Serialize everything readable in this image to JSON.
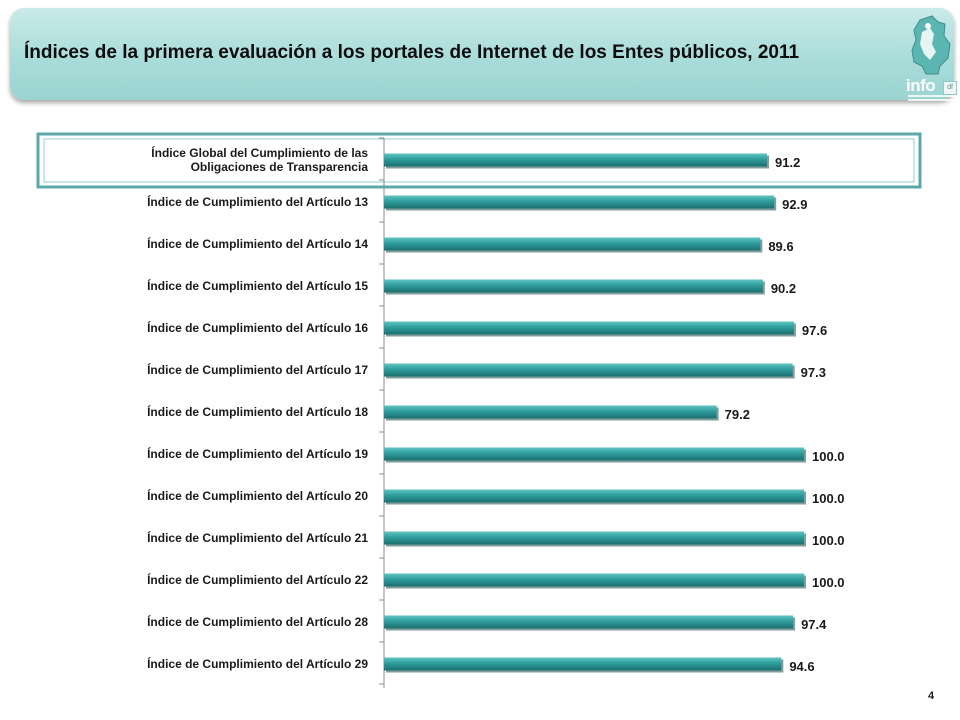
{
  "header": {
    "title": "Índices de la primera evaluación a los portales de Internet de los Entes públicos, 2011",
    "logo_text": "info",
    "logo_badge": "df"
  },
  "page_number": "4",
  "colors": {
    "bar": "#2e9c9c",
    "bar_dark": "#1d6e6e",
    "bar_light": "#5fc4c2",
    "banner": "#a9dcd9",
    "highlight_border": "#5aa9a8"
  },
  "chart_data": {
    "type": "bar",
    "orientation": "horizontal",
    "categories": [
      "Índice Global del Cumplimiento de las Obligaciones de Transparencia",
      "Índice de Cumplimiento del Artículo 13",
      "Índice de Cumplimiento del Artículo 14",
      "Índice de Cumplimiento del Artículo 15",
      "Índice de Cumplimiento del Artículo 16",
      "Índice de Cumplimiento del Artículo 17",
      "Índice de Cumplimiento del Artículo 18",
      "Índice de Cumplimiento del Artículo 19",
      "Índice de Cumplimiento del Artículo 20",
      "Índice de Cumplimiento del Artículo 21",
      "Índice de Cumplimiento del Artículo 22",
      "Índice de Cumplimiento del Artículo 28",
      "Índice de Cumplimiento del Artículo 29"
    ],
    "category_lines": [
      [
        "Índice Global del Cumplimiento de las",
        "Obligaciones de Transparencia"
      ],
      [
        "Índice de Cumplimiento del Artículo 13"
      ],
      [
        "Índice de Cumplimiento del Artículo 14"
      ],
      [
        "Índice de Cumplimiento del Artículo 15"
      ],
      [
        "Índice de Cumplimiento del Artículo 16"
      ],
      [
        "Índice de Cumplimiento del Artículo 17"
      ],
      [
        "Índice de Cumplimiento del Artículo 18"
      ],
      [
        "Índice de Cumplimiento del Artículo 19"
      ],
      [
        "Índice de Cumplimiento del Artículo 20"
      ],
      [
        "Índice de Cumplimiento del Artículo 21"
      ],
      [
        "Índice de Cumplimiento del Artículo 22"
      ],
      [
        "Índice de Cumplimiento del Artículo 28"
      ],
      [
        "Índice de Cumplimiento del Artículo 29"
      ]
    ],
    "values": [
      91.2,
      92.9,
      89.6,
      90.2,
      97.6,
      97.3,
      79.2,
      100.0,
      100.0,
      100.0,
      100.0,
      97.4,
      94.6
    ],
    "value_labels": [
      "91.2",
      "92.9",
      "89.6",
      "90.2",
      "97.6",
      "97.3",
      "79.2",
      "100.0",
      "100.0",
      "100.0",
      "100.0",
      "97.4",
      "94.6"
    ],
    "highlighted_index": 0,
    "xlim": [
      0,
      100
    ],
    "grid": false,
    "legend": "none",
    "title": "",
    "xlabel": "",
    "ylabel": ""
  }
}
